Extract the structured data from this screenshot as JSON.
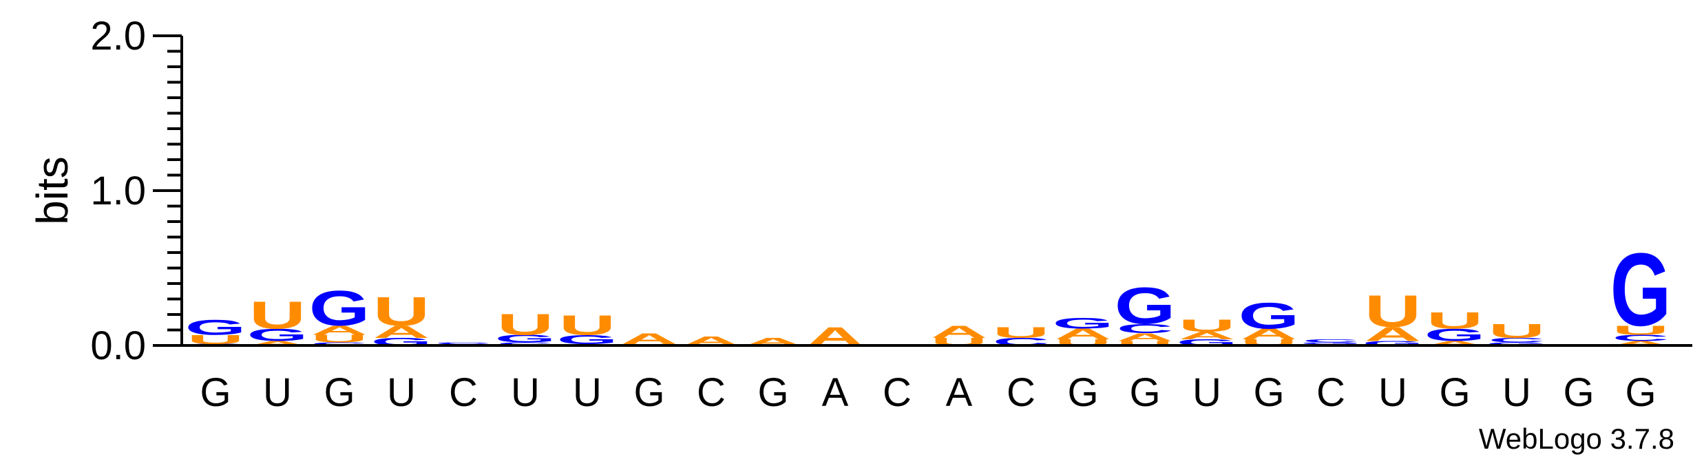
{
  "chart_data": {
    "type": "sequence_logo",
    "ylabel": "bits",
    "ylim": [
      0,
      2
    ],
    "yticks": [
      "0.0",
      "1.0",
      "2.0"
    ],
    "colors": {
      "A": "#ff8c00",
      "U": "#ff8c00",
      "G": "#0000ff",
      "C": "#0000ff"
    },
    "positions": [
      {
        "label": "G",
        "stack": [
          {
            "letter": "C",
            "bits": 0.01
          },
          {
            "letter": "U",
            "bits": 0.06
          },
          {
            "letter": "G",
            "bits": 0.1
          }
        ]
      },
      {
        "label": "U",
        "stack": [
          {
            "letter": "A",
            "bits": 0.03
          },
          {
            "letter": "G",
            "bits": 0.08
          },
          {
            "letter": "U",
            "bits": 0.18
          }
        ]
      },
      {
        "label": "G",
        "stack": [
          {
            "letter": "C",
            "bits": 0.02
          },
          {
            "letter": "U",
            "bits": 0.05
          },
          {
            "letter": "A",
            "bits": 0.06
          },
          {
            "letter": "G",
            "bits": 0.23
          }
        ]
      },
      {
        "label": "U",
        "stack": [
          {
            "letter": "G",
            "bits": 0.05
          },
          {
            "letter": "A",
            "bits": 0.08
          },
          {
            "letter": "U",
            "bits": 0.19
          }
        ]
      },
      {
        "label": "C",
        "stack": [
          {
            "letter": "G",
            "bits": 0.01
          },
          {
            "letter": "C",
            "bits": 0.01
          }
        ]
      },
      {
        "label": "U",
        "stack": [
          {
            "letter": "C",
            "bits": 0.02
          },
          {
            "letter": "G",
            "bits": 0.05
          },
          {
            "letter": "U",
            "bits": 0.14
          }
        ]
      },
      {
        "label": "U",
        "stack": [
          {
            "letter": "A",
            "bits": 0.01
          },
          {
            "letter": "G",
            "bits": 0.06
          },
          {
            "letter": "U",
            "bits": 0.13
          }
        ]
      },
      {
        "label": "G",
        "stack": [
          {
            "letter": "U",
            "bits": 0.01
          },
          {
            "letter": "A",
            "bits": 0.07
          }
        ]
      },
      {
        "label": "C",
        "stack": [
          {
            "letter": "A",
            "bits": 0.06
          }
        ]
      },
      {
        "label": "G",
        "stack": [
          {
            "letter": "A",
            "bits": 0.05
          }
        ]
      },
      {
        "label": "A",
        "stack": [
          {
            "letter": "A",
            "bits": 0.12
          }
        ]
      },
      {
        "label": "C",
        "stack": []
      },
      {
        "label": "A",
        "stack": [
          {
            "letter": "U",
            "bits": 0.05
          },
          {
            "letter": "A",
            "bits": 0.08
          }
        ]
      },
      {
        "label": "C",
        "stack": [
          {
            "letter": "C",
            "bits": 0.05
          },
          {
            "letter": "U",
            "bits": 0.07
          }
        ]
      },
      {
        "label": "G",
        "stack": [
          {
            "letter": "U",
            "bits": 0.04
          },
          {
            "letter": "A",
            "bits": 0.07
          },
          {
            "letter": "G",
            "bits": 0.07
          }
        ]
      },
      {
        "label": "G",
        "stack": [
          {
            "letter": "U",
            "bits": 0.03
          },
          {
            "letter": "A",
            "bits": 0.05
          },
          {
            "letter": "C",
            "bits": 0.06
          },
          {
            "letter": "G",
            "bits": 0.24
          }
        ]
      },
      {
        "label": "U",
        "stack": [
          {
            "letter": "G",
            "bits": 0.04
          },
          {
            "letter": "A",
            "bits": 0.05
          },
          {
            "letter": "U",
            "bits": 0.08
          }
        ]
      },
      {
        "label": "G",
        "stack": [
          {
            "letter": "U",
            "bits": 0.04
          },
          {
            "letter": "A",
            "bits": 0.07
          },
          {
            "letter": "G",
            "bits": 0.17
          }
        ]
      },
      {
        "label": "C",
        "stack": [
          {
            "letter": "A",
            "bits": 0.01
          },
          {
            "letter": "G",
            "bits": 0.01
          },
          {
            "letter": "C",
            "bits": 0.02
          }
        ]
      },
      {
        "label": "U",
        "stack": [
          {
            "letter": "G",
            "bits": 0.03
          },
          {
            "letter": "A",
            "bits": 0.09
          },
          {
            "letter": "U",
            "bits": 0.21
          }
        ]
      },
      {
        "label": "G",
        "stack": [
          {
            "letter": "A",
            "bits": 0.03
          },
          {
            "letter": "G",
            "bits": 0.08
          },
          {
            "letter": "U",
            "bits": 0.11
          }
        ]
      },
      {
        "label": "U",
        "stack": [
          {
            "letter": "G",
            "bits": 0.02
          },
          {
            "letter": "C",
            "bits": 0.03
          },
          {
            "letter": "U",
            "bits": 0.09
          }
        ]
      },
      {
        "label": "G",
        "stack": []
      },
      {
        "label": "G",
        "stack": [
          {
            "letter": "A",
            "bits": 0.03
          },
          {
            "letter": "C",
            "bits": 0.04
          },
          {
            "letter": "U",
            "bits": 0.06
          },
          {
            "letter": "G",
            "bits": 0.48
          }
        ]
      }
    ]
  },
  "credit": "WebLogo 3.7.8"
}
